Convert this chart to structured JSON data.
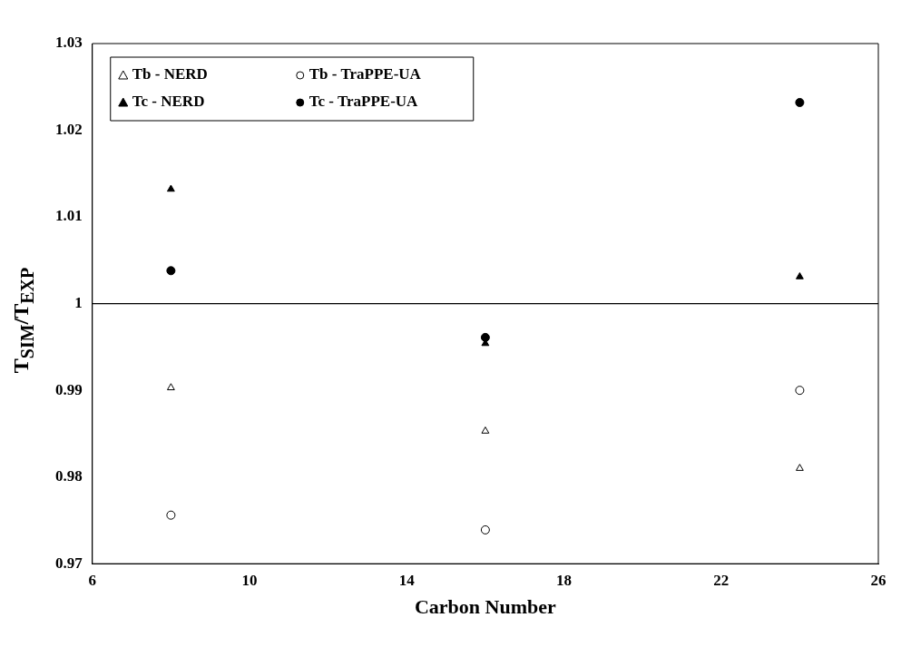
{
  "chart_data": {
    "type": "scatter",
    "xlabel": "Carbon Number",
    "ylabel": "T$_{SIM}$/T$_{EXP}$",
    "x": [
      8,
      16,
      24
    ],
    "series": [
      {
        "name": "Tb - NERD",
        "color": "#000000",
        "marker": "triangle",
        "values": [
          0.9903,
          0.9853,
          0.981
        ]
      },
      {
        "name": "Tb - TraPPE-UA",
        "color": "#000000",
        "marker": "circle",
        "values": [
          0.9756,
          0.9739,
          0.99
        ]
      },
      {
        "name": "Tc - NERD",
        "color": "#000000",
        "marker": "triangle",
        "values": [
          1.0132,
          0.9954,
          1.0031
        ]
      },
      {
        "name": "Tc - TraPPE-UA",
        "color": "#000000",
        "marker": "circle",
        "values": [
          1.0038,
          0.9961,
          1.0232
        ]
      }
    ],
    "xlim": [
      6,
      26
    ],
    "xticks": [
      6,
      10,
      14,
      18,
      22,
      26
    ],
    "ylim": [
      0.97,
      1.03
    ],
    "yticks": [
      0.97,
      0.98,
      0.99,
      {
        "value": 1,
        "label": "1"
      },
      1.01,
      1.02,
      1.03
    ],
    "ref_lines": [
      {
        "axis": "y",
        "value": 1,
        "color": "#000000"
      }
    ],
    "grid": false,
    "legend": "top left"
  }
}
